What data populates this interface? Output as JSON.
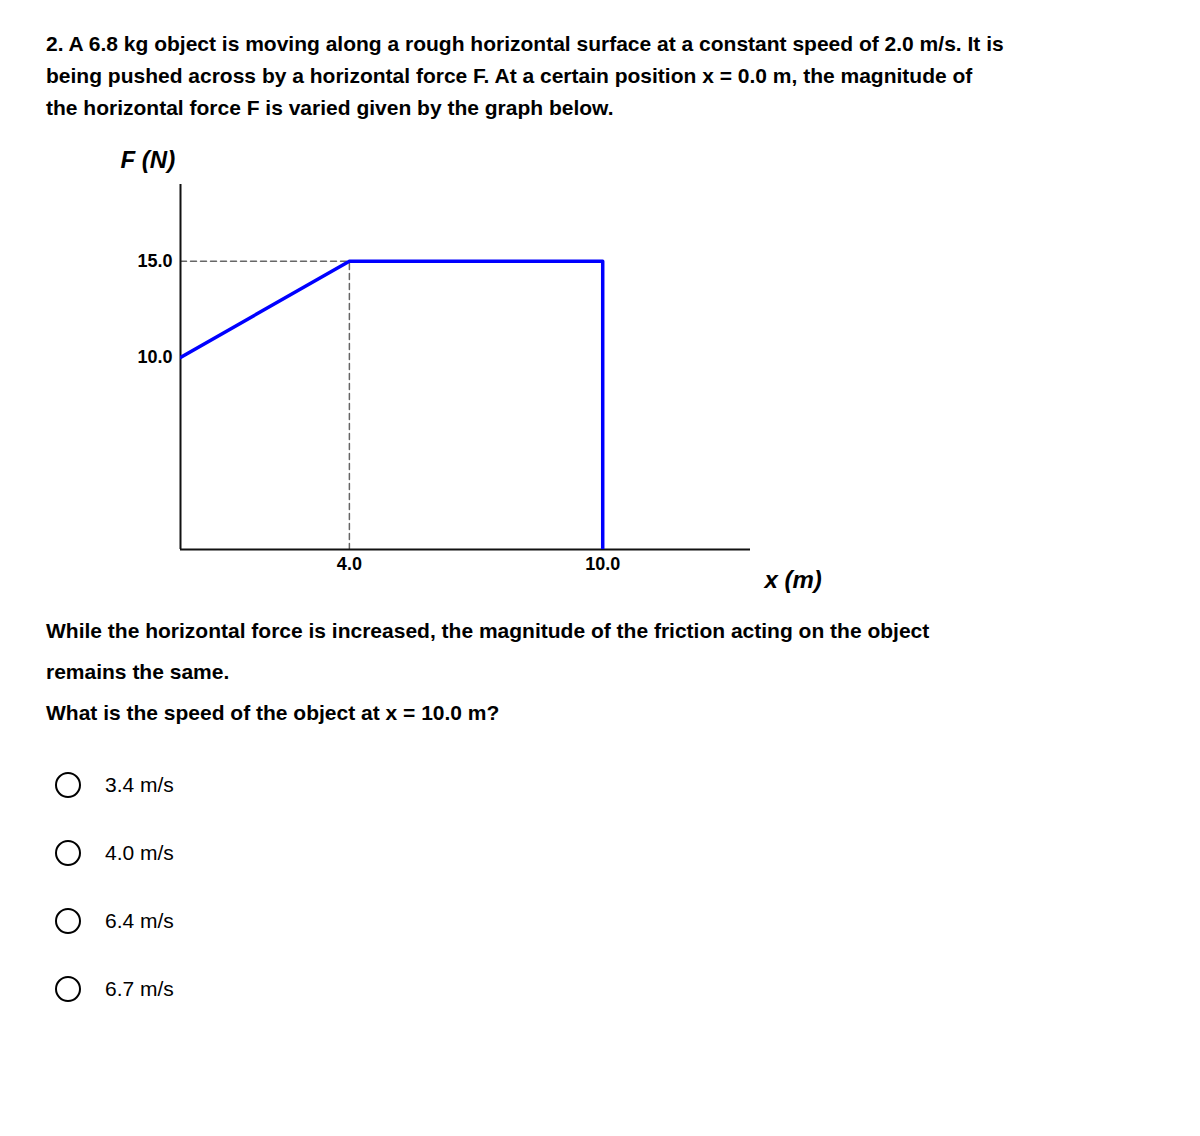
{
  "chart_data": {
    "type": "line",
    "title": "2. A 6.8 kg object is moving along a rough horizontal surface at a constant speed of 2.0 m/s. It is\nbeing pushed across by a horizontal force F. At a certain position x = 0.0 m, the magnitude of\nthe horizontal force F is varied given by the graph below.",
    "x_label": "x (m)",
    "y_label": "F (N)",
    "x": [
      0,
      4.0,
      10.0,
      10.0
    ],
    "values": [
      10.0,
      15.0,
      15.0,
      0.0
    ],
    "color": "#0000FF",
    "reference_lines": [
      {
        "x": [
          0,
          4.0
        ],
        "y": [
          15.0,
          15.0
        ]
      },
      {
        "x": [
          4.0,
          4.0
        ],
        "y": [
          0,
          15.0
        ]
      },
      {
        "x": [
          10.0,
          10.0
        ],
        "y": [
          0,
          15.0
        ]
      }
    ],
    "reference_color": "#666666",
    "line_style": "dashed",
    "xlim": [
      0,
      13.5
    ],
    "ylim": [
      0,
      19
    ],
    "xticks": [
      {
        "value": 4.0,
        "label": "4.0"
      },
      {
        "value": 10.0,
        "label": "10.0"
      }
    ],
    "yticks": [
      {
        "value": 10.0,
        "label": "10.0"
      },
      {
        "value": 15.0,
        "label": "15.0"
      }
    ],
    "grid": false,
    "annotations": [
      "While the horizontal force is increased, the magnitude of the friction acting on the object",
      "remains the same.",
      "What is the speed of the object at x = 10.0 m?"
    ],
    "choices": [
      "3.4 m/s",
      "4.0 m/s",
      "6.4 m/s",
      "6.7 m/s"
    ]
  }
}
